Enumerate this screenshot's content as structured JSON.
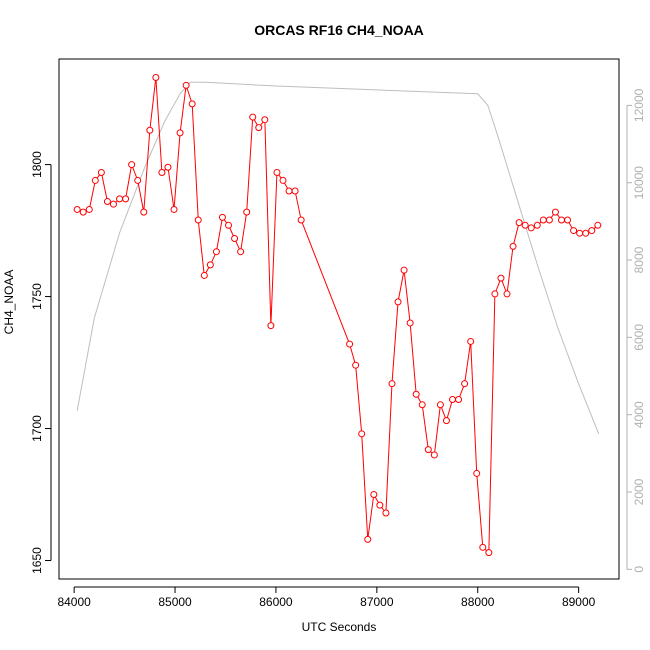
{
  "chart_data": {
    "type": "line",
    "title": "ORCAS RF16 CH4_NOAA",
    "xlabel": "UTC Seconds",
    "ylabel": "CH4_NOAA",
    "xlim": [
      83850,
      89400
    ],
    "ylim": [
      1643,
      1840
    ],
    "y2lim": [
      -250,
      13200
    ],
    "x_ticks": [
      84000,
      85000,
      86000,
      87000,
      88000,
      89000
    ],
    "y_ticks": [
      1650,
      1700,
      1750,
      1800
    ],
    "y2_ticks": [
      0,
      2000,
      4000,
      6000,
      8000,
      10000,
      12000
    ],
    "colors": {
      "primary": "#ff0000",
      "secondary": "#bebebe",
      "frame": "#000000",
      "right_ticks": "#b0b0b0"
    },
    "series": [
      {
        "axis": "left",
        "style": "line+markers",
        "color": "#ff0000",
        "x": [
          84030,
          84090,
          84150,
          84210,
          84270,
          84330,
          84390,
          84450,
          84510,
          84570,
          84630,
          84690,
          84750,
          84810,
          84870,
          84930,
          84990,
          85050,
          85110,
          85170,
          85230,
          85290,
          85350,
          85410,
          85470,
          85530,
          85590,
          85650,
          85710,
          85770,
          85830,
          85890,
          85950,
          86010,
          86070,
          86130,
          86190,
          86250,
          86730,
          86790,
          86850,
          86910,
          86970,
          87030,
          87090,
          87150,
          87210,
          87270,
          87330,
          87390,
          87450,
          87510,
          87570,
          87630,
          87690,
          87750,
          87810,
          87870,
          87930,
          87990,
          88050,
          88110,
          88170,
          88230,
          88290,
          88350,
          88410,
          88470,
          88530,
          88590,
          88650,
          88710,
          88770,
          88830,
          88890,
          88950,
          89010,
          89070,
          89130,
          89190
        ],
        "y": [
          1783,
          1782,
          1783,
          1794,
          1797,
          1786,
          1785,
          1787,
          1787,
          1800,
          1794,
          1782,
          1813,
          1833,
          1797,
          1799,
          1783,
          1812,
          1830,
          1823,
          1779,
          1758,
          1762,
          1767,
          1780,
          1777,
          1772,
          1767,
          1782,
          1818,
          1814,
          1817,
          1739,
          1797,
          1794,
          1790,
          1790,
          1779,
          1732,
          1724,
          1698,
          1658,
          1675,
          1671,
          1668,
          1717,
          1748,
          1760,
          1740,
          1713,
          1709,
          1692,
          1690,
          1709,
          1703,
          1711,
          1711,
          1717,
          1733,
          1683,
          1655,
          1653,
          1751,
          1757,
          1751,
          1769,
          1778,
          1777,
          1776,
          1777,
          1779,
          1779,
          1782,
          1779,
          1779,
          1775,
          1774,
          1774,
          1775,
          1777
        ]
      },
      {
        "axis": "right",
        "style": "line",
        "color": "#bebebe",
        "x": [
          84030,
          84200,
          84450,
          84700,
          84900,
          85050,
          85150,
          85300,
          86000,
          87000,
          88000,
          88100,
          88200,
          88400,
          88600,
          88800,
          89000,
          89200
        ],
        "y": [
          4100,
          6500,
          8700,
          10400,
          11600,
          12300,
          12600,
          12600,
          12500,
          12400,
          12300,
          12000,
          11200,
          9500,
          7800,
          6200,
          4800,
          3500
        ]
      }
    ]
  }
}
